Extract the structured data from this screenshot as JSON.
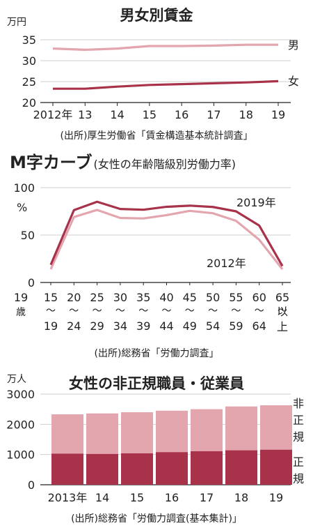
{
  "colors": {
    "dark": "#A8324A",
    "light": "#E3A5AE",
    "grid": "#cfcfcf",
    "axis": "#222222"
  },
  "chart_data": [
    {
      "type": "line",
      "title": "男女別賃金",
      "unit": "万円",
      "x": [
        "2012年",
        "13",
        "14",
        "15",
        "16",
        "17",
        "18",
        "19"
      ],
      "ylim": [
        20,
        35
      ],
      "yticks": [
        "20",
        "25",
        "30",
        "35"
      ],
      "series": [
        {
          "name": "男",
          "values": [
            32.9,
            32.6,
            32.9,
            33.5,
            33.5,
            33.6,
            33.8,
            33.8
          ]
        },
        {
          "name": "女",
          "values": [
            23.3,
            23.3,
            23.8,
            24.2,
            24.4,
            24.6,
            24.8,
            25.1
          ]
        }
      ],
      "source": "(出所)厚生労働省「賃金構造基本統計調査」"
    },
    {
      "type": "line",
      "title": "M字カーブ",
      "subtitle": "(女性の年齢階級別労働力率)",
      "unit": "%",
      "x": [
        {
          "top": "15",
          "bot": "19"
        },
        {
          "top": "20",
          "bot": "24"
        },
        {
          "top": "25",
          "bot": "29"
        },
        {
          "top": "30",
          "bot": "34"
        },
        {
          "top": "35",
          "bot": "39"
        },
        {
          "top": "40",
          "bot": "44"
        },
        {
          "top": "45",
          "bot": "49"
        },
        {
          "top": "50",
          "bot": "54"
        },
        {
          "top": "55",
          "bot": "59"
        },
        {
          "top": "60",
          "bot": "64"
        },
        {
          "top": "65",
          "bot": "以上"
        }
      ],
      "xunit": "歳",
      "ylim": [
        0,
        100
      ],
      "yticks": [
        "0",
        "50",
        "100"
      ],
      "series": [
        {
          "name": "2019年",
          "values": [
            18.7,
            76.3,
            85.1,
            77.5,
            76.7,
            79.8,
            81.0,
            79.6,
            75.0,
            60.0,
            17.3
          ]
        },
        {
          "name": "2012年",
          "values": [
            14.0,
            69.0,
            76.5,
            68.0,
            67.5,
            71.0,
            75.5,
            73.0,
            65.0,
            45.0,
            14.0
          ]
        }
      ],
      "source": "(出所)総務省「労働力調査」"
    },
    {
      "type": "bar",
      "title": "女性の非正規職員・従業員",
      "unit": "万人",
      "categories": [
        "2013年",
        "14",
        "15",
        "16",
        "17",
        "18",
        "19"
      ],
      "ylim": [
        0,
        3000
      ],
      "yticks": [
        "0",
        "1000",
        "2000",
        "3000"
      ],
      "series": [
        {
          "name": "正規",
          "values": [
            1030,
            1020,
            1040,
            1080,
            1110,
            1140,
            1160
          ]
        },
        {
          "name": "非正規",
          "values": [
            1300,
            1340,
            1360,
            1370,
            1390,
            1450,
            1470
          ]
        }
      ],
      "source": "(出所)総務省「労働力調査(基本集計)」"
    }
  ]
}
